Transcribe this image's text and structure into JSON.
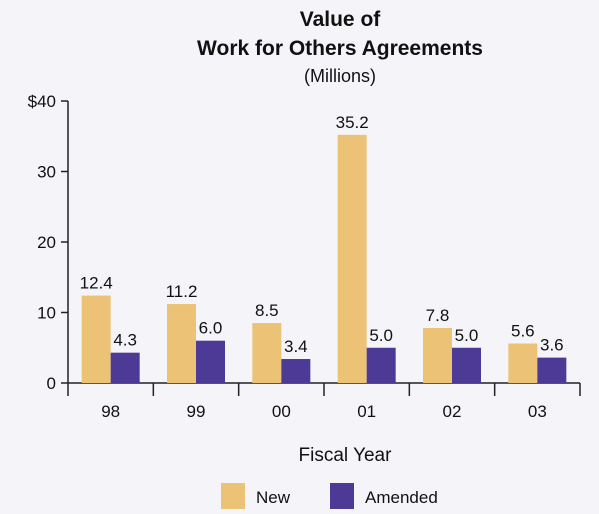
{
  "chart_data": {
    "type": "bar",
    "title_line1": "Value of",
    "title_line2": "Work for Others Agreements",
    "subtitle": "(Millions)",
    "xlabel": "Fiscal Year",
    "ylabel": "",
    "categories": [
      "98",
      "99",
      "00",
      "01",
      "02",
      "03"
    ],
    "series": [
      {
        "name": "New",
        "color": "#ecc277",
        "values": [
          12.4,
          11.2,
          8.5,
          35.2,
          7.8,
          5.6
        ],
        "labels": [
          "12.4",
          "11.2",
          "8.5",
          "35.2",
          "7.8",
          "5.6"
        ]
      },
      {
        "name": "Amended",
        "color": "#4c3a96",
        "values": [
          4.3,
          6.0,
          3.4,
          5.0,
          5.0,
          3.6
        ],
        "labels": [
          "4.3",
          "6.0",
          "3.4",
          "5.0",
          "5.0",
          "3.6"
        ]
      }
    ],
    "ylim": [
      0,
      40
    ],
    "yticks": [
      0,
      10,
      20,
      30,
      40
    ],
    "ytick_labels": [
      "0",
      "10",
      "20",
      "30",
      "$40"
    ],
    "grid": false,
    "legend_position": "bottom"
  }
}
